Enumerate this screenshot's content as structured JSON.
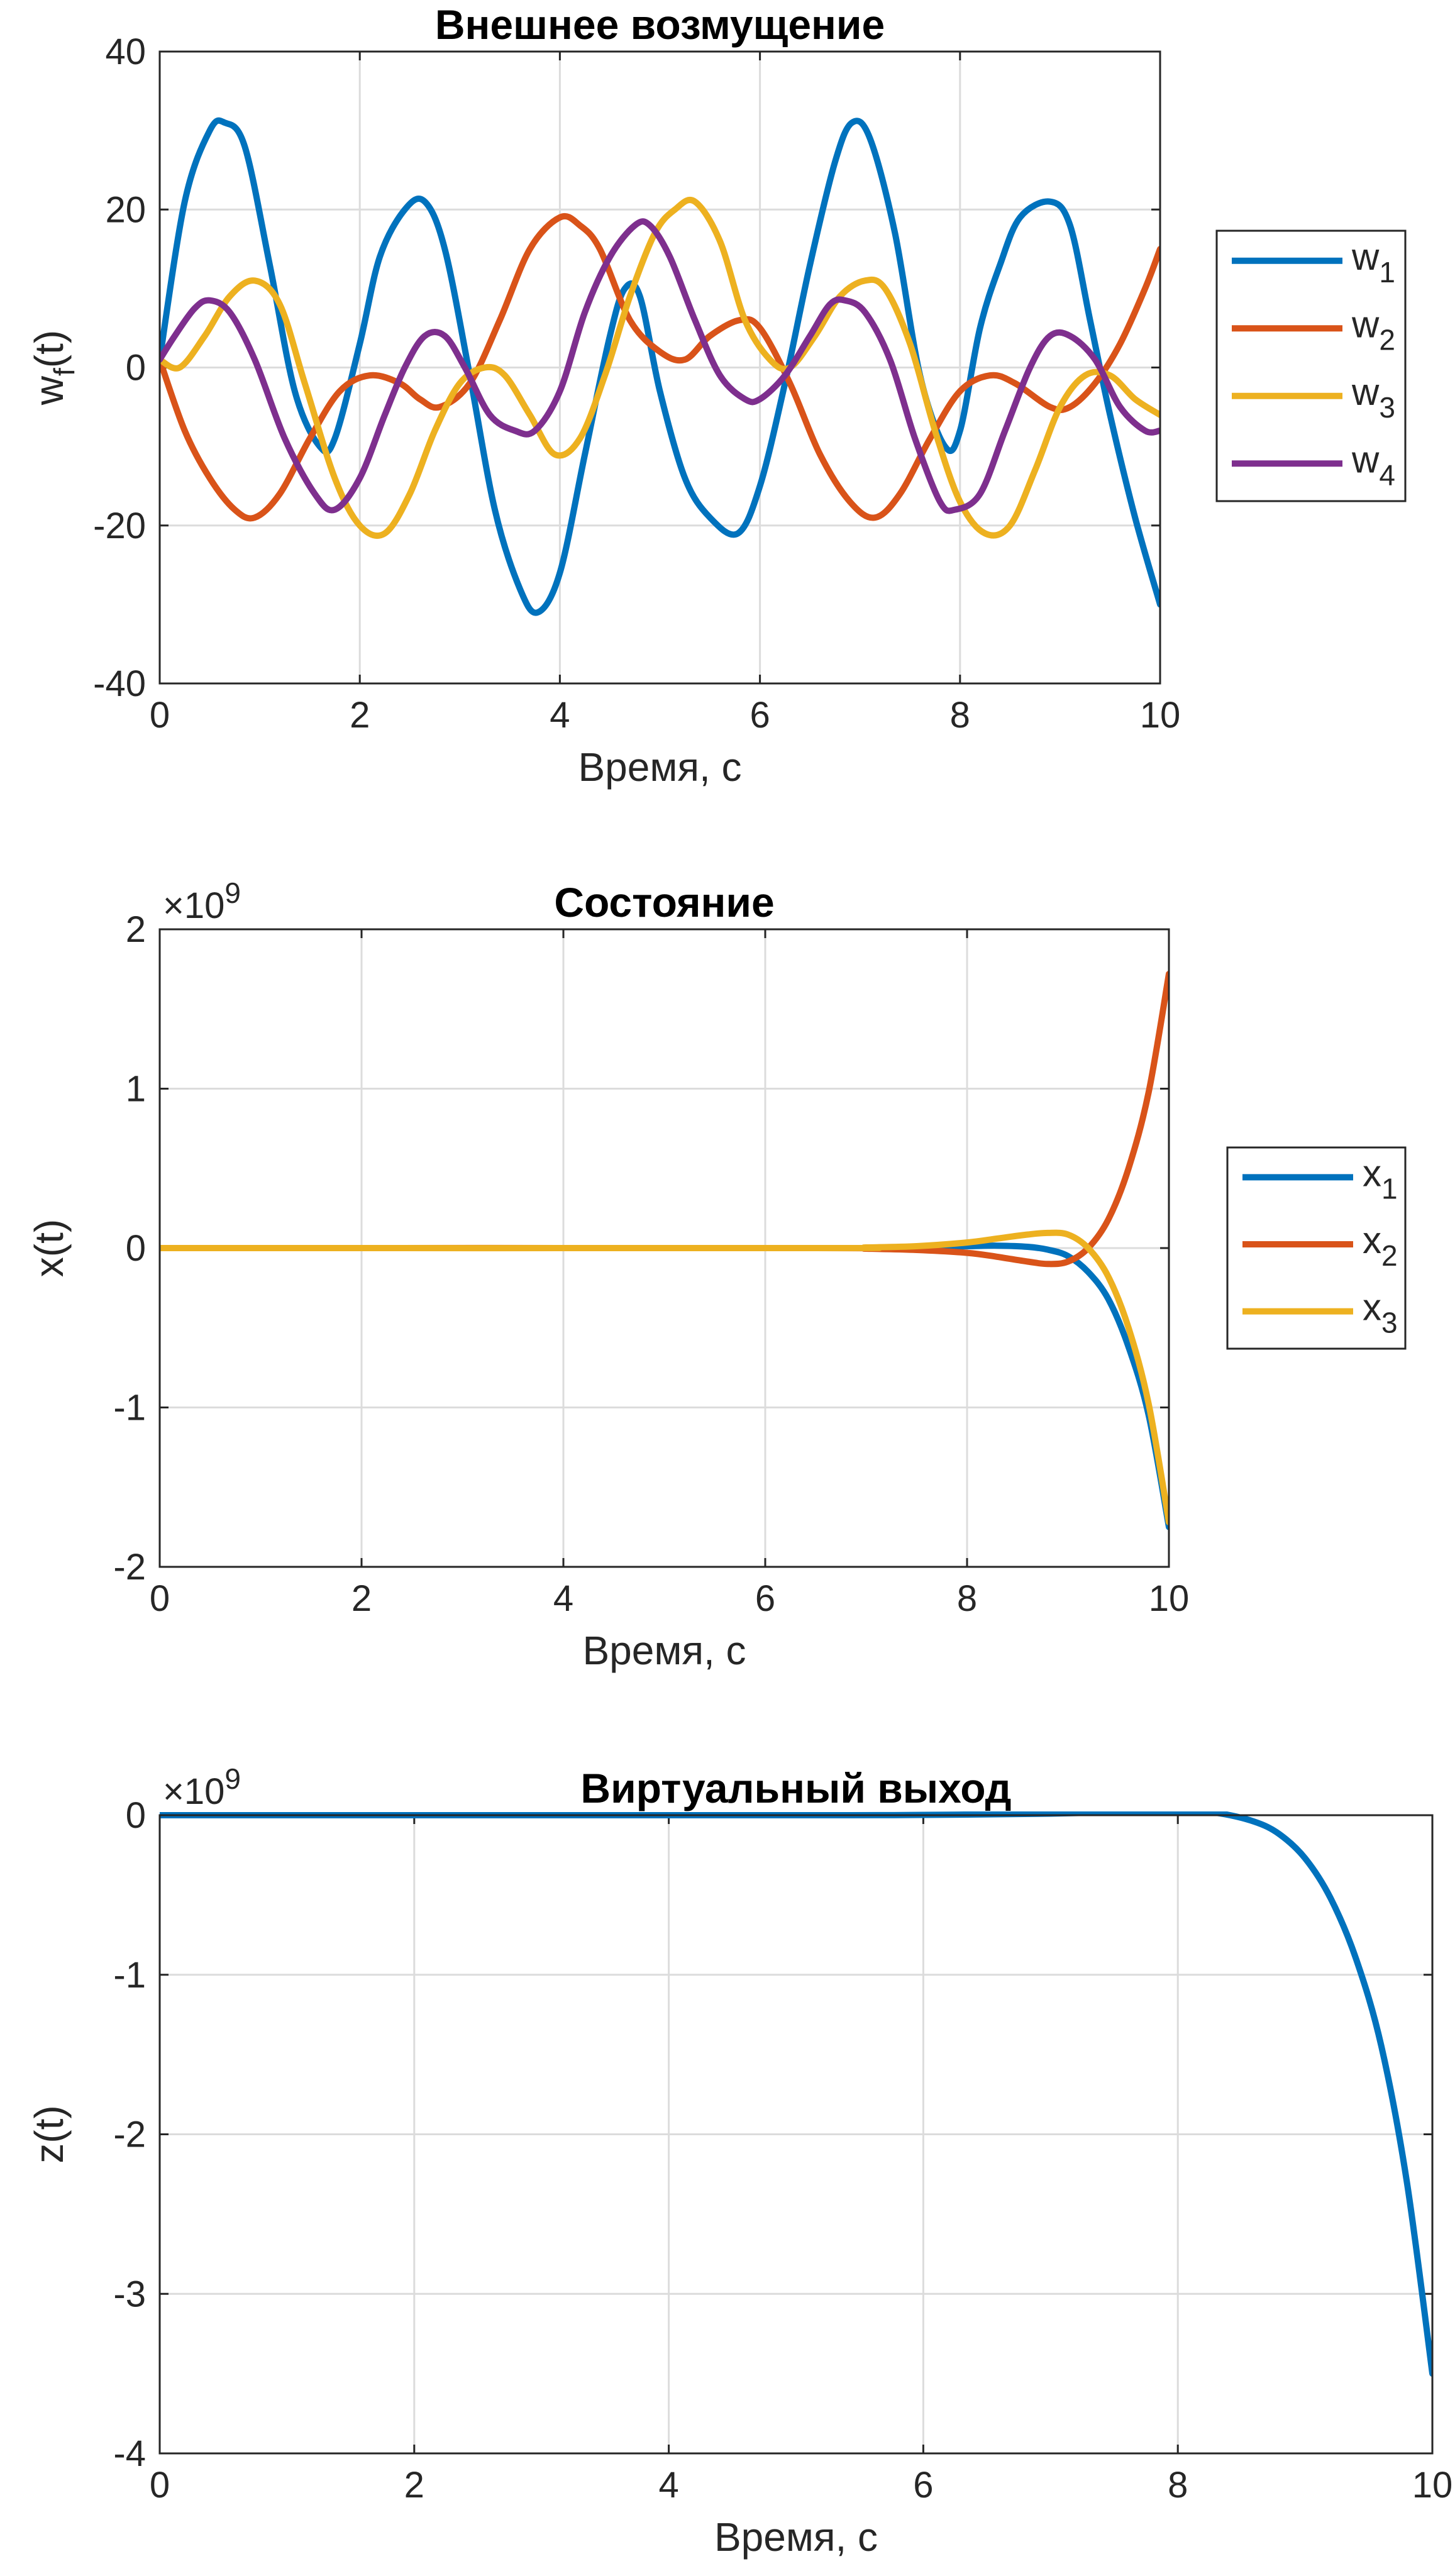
{
  "chart_data": [
    {
      "type": "line",
      "title": "Внешнее возмущение",
      "xlabel": "Время, с",
      "ylabel": {
        "base": "w",
        "sub": "f",
        "suffix": "(t)"
      },
      "xlim": [
        0,
        10
      ],
      "ylim": [
        -40,
        40
      ],
      "xticks": [
        "0",
        "2",
        "4",
        "6",
        "8",
        "10"
      ],
      "yticks": [
        "40",
        "20",
        "0",
        "-20",
        "-40"
      ],
      "grid": true,
      "legend": {
        "placement": "outside-right"
      },
      "series": [
        {
          "name": "w",
          "sub": "1",
          "color": "#0072BD",
          "x": [
            0,
            0.25,
            0.5,
            0.65,
            0.85,
            1.1,
            1.35,
            1.6,
            1.75,
            2.0,
            2.2,
            2.45,
            2.65,
            2.85,
            3.1,
            3.35,
            3.6,
            3.78,
            4.0,
            4.25,
            4.5,
            4.65,
            4.8,
            5.0,
            5.25,
            5.5,
            5.78,
            6.0,
            6.25,
            6.5,
            6.75,
            6.92,
            7.1,
            7.35,
            7.6,
            7.85,
            8.0,
            8.2,
            8.4,
            8.6,
            8.9,
            9.1,
            9.3,
            9.5,
            9.75,
            10.0
          ],
          "y": [
            1,
            21,
            30,
            31,
            28,
            13,
            -3,
            -10,
            -9,
            3,
            14,
            20,
            21,
            15,
            -1,
            -18,
            -28,
            -31,
            -26,
            -11,
            4,
            10,
            9,
            -3,
            -14,
            -19,
            -21,
            -15,
            -2,
            13,
            26,
            31,
            29,
            17,
            -1,
            -10,
            -8,
            5,
            13,
            19,
            21,
            18,
            6,
            -6,
            -19,
            -30
          ]
        },
        {
          "name": "w",
          "sub": "2",
          "color": "#D95319",
          "x": [
            0,
            0.25,
            0.5,
            0.75,
            0.95,
            1.2,
            1.5,
            1.8,
            2.1,
            2.4,
            2.6,
            2.8,
            3.1,
            3.4,
            3.7,
            4.0,
            4.2,
            4.4,
            4.7,
            5.0,
            5.25,
            5.5,
            5.8,
            6.0,
            6.3,
            6.6,
            6.9,
            7.15,
            7.4,
            7.7,
            8.0,
            8.3,
            8.55,
            8.9,
            9.1,
            9.35,
            9.6,
            9.85,
            10.0
          ],
          "y": [
            1,
            -8,
            -14,
            -18,
            -19,
            -16,
            -9,
            -3,
            -1,
            -2,
            -4,
            -5,
            -2,
            6,
            15,
            19,
            18,
            15,
            6,
            2,
            1,
            4,
            6,
            5,
            -2,
            -11,
            -17,
            -19,
            -16,
            -9,
            -3,
            -1,
            -2,
            -5,
            -5,
            -2,
            3,
            10,
            15
          ]
        },
        {
          "name": "w",
          "sub": "3",
          "color": "#EDB120",
          "x": [
            0,
            0.2,
            0.45,
            0.7,
            0.95,
            1.2,
            1.45,
            1.75,
            2.0,
            2.25,
            2.5,
            2.75,
            3.0,
            3.25,
            3.45,
            3.7,
            3.95,
            4.2,
            4.45,
            4.7,
            4.95,
            5.15,
            5.35,
            5.6,
            5.85,
            6.1,
            6.3,
            6.55,
            6.8,
            7.05,
            7.25,
            7.5,
            7.75,
            8.0,
            8.25,
            8.5,
            8.75,
            9.0,
            9.25,
            9.5,
            9.75,
            10.0
          ],
          "y": [
            1,
            0,
            4,
            9,
            11,
            8,
            -2,
            -14,
            -20,
            -21,
            -16,
            -8,
            -2,
            0,
            -1,
            -6,
            -11,
            -9,
            -1,
            9,
            17,
            20,
            21,
            16,
            6,
            1,
            0,
            4,
            9,
            11,
            10,
            3,
            -8,
            -17,
            -21,
            -20,
            -13,
            -5,
            -1,
            -1,
            -4,
            -6
          ]
        },
        {
          "name": "w",
          "sub": "4",
          "color": "#7E2F8E",
          "x": [
            0,
            0.15,
            0.35,
            0.5,
            0.7,
            0.95,
            1.25,
            1.55,
            1.75,
            2.0,
            2.25,
            2.45,
            2.65,
            2.85,
            3.05,
            3.3,
            3.55,
            3.75,
            4.0,
            4.25,
            4.5,
            4.75,
            4.9,
            5.1,
            5.35,
            5.6,
            5.85,
            6.0,
            6.25,
            6.5,
            6.7,
            6.85,
            7.05,
            7.3,
            7.55,
            7.8,
            7.95,
            8.2,
            8.45,
            8.7,
            8.9,
            9.1,
            9.35,
            9.6,
            9.85,
            10.0
          ],
          "y": [
            1,
            4,
            7.5,
            8.5,
            7,
            1,
            -9,
            -16,
            -18,
            -14,
            -6,
            0,
            4,
            4,
            0,
            -6,
            -8,
            -8,
            -3,
            7,
            14,
            18,
            18,
            14,
            6,
            -1,
            -4,
            -4,
            -1,
            4,
            8,
            8.5,
            7,
            1,
            -9,
            -17,
            -18,
            -16,
            -8,
            0,
            4,
            4,
            1,
            -5,
            -8,
            -8
          ]
        }
      ]
    },
    {
      "type": "line",
      "title": "Состояние",
      "xlabel": "Время, с",
      "ylabel": {
        "base": "x",
        "sub": "",
        "suffix": "(t)"
      },
      "multiplier": {
        "base": "×10",
        "exponent": "9"
      },
      "xlim": [
        0,
        10
      ],
      "ylim": [
        -2,
        2
      ],
      "xticks": [
        "0",
        "2",
        "4",
        "6",
        "8",
        "10"
      ],
      "yticks": [
        "2",
        "1",
        "0",
        "-1",
        "-2"
      ],
      "grid": true,
      "legend": {
        "placement": "outside-right"
      },
      "series": [
        {
          "name": "x",
          "sub": "1",
          "color": "#0072BD",
          "x": [
            0,
            6.5,
            7.0,
            7.5,
            8.0,
            8.3,
            8.6,
            8.8,
            9.0,
            9.2,
            9.4,
            9.6,
            9.8,
            10.0
          ],
          "y": [
            0,
            0,
            0.002,
            0.006,
            0.012,
            0.015,
            0.008,
            -0.01,
            -0.05,
            -0.15,
            -0.32,
            -0.62,
            -1.05,
            -1.75
          ]
        },
        {
          "name": "x",
          "sub": "2",
          "color": "#D95319",
          "x": [
            0,
            6.5,
            7.0,
            7.5,
            8.0,
            8.3,
            8.6,
            8.8,
            9.0,
            9.2,
            9.4,
            9.6,
            9.8,
            10.0
          ],
          "y": [
            0,
            0,
            -0.004,
            -0.012,
            -0.03,
            -0.055,
            -0.085,
            -0.1,
            -0.085,
            0.0,
            0.18,
            0.5,
            0.98,
            1.72
          ]
        },
        {
          "name": "x",
          "sub": "3",
          "color": "#EDB120",
          "x": [
            0,
            6.5,
            7.0,
            7.5,
            8.0,
            8.3,
            8.6,
            8.8,
            9.0,
            9.2,
            9.4,
            9.6,
            9.8,
            10.0
          ],
          "y": [
            0,
            0,
            0.004,
            0.012,
            0.035,
            0.06,
            0.085,
            0.095,
            0.085,
            0.0,
            -0.18,
            -0.5,
            -0.98,
            -1.72
          ]
        }
      ]
    },
    {
      "type": "line",
      "title": "Виртуальный выход",
      "xlabel": "Время, с",
      "ylabel": {
        "base": "z",
        "sub": "",
        "suffix": "(t)"
      },
      "multiplier": {
        "base": "×10",
        "exponent": "9"
      },
      "xlim": [
        0,
        10
      ],
      "ylim": [
        -4,
        0
      ],
      "xticks": [
        "0",
        "2",
        "4",
        "6",
        "8",
        "10"
      ],
      "yticks": [
        "0",
        "-1",
        "-2",
        "-3",
        "-4"
      ],
      "grid": true,
      "legend": null,
      "series": [
        {
          "color": "#0072BD",
          "x": [
            0,
            5.0,
            6.0,
            7.0,
            7.6,
            8.0,
            8.3,
            8.6,
            8.8,
            9.0,
            9.2,
            9.4,
            9.6,
            9.8,
            10.0
          ],
          "y": [
            0,
            0,
            0.002,
            0.01,
            0.02,
            0.025,
            0.015,
            -0.04,
            -0.12,
            -0.27,
            -0.52,
            -0.9,
            -1.45,
            -2.3,
            -3.5
          ]
        }
      ]
    }
  ]
}
